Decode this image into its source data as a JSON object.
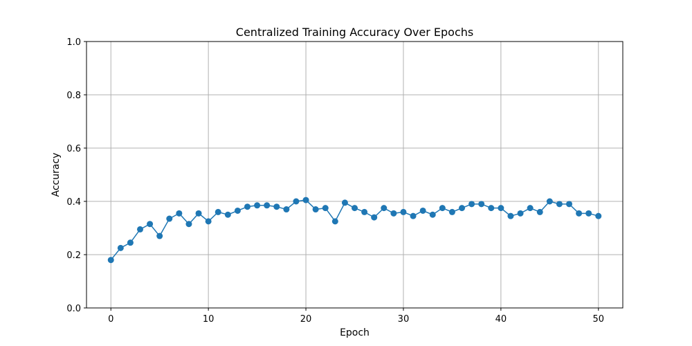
{
  "chart_data": {
    "type": "line",
    "title": "Centralized Training Accuracy Over Epochs",
    "xlabel": "Epoch",
    "ylabel": "Accuracy",
    "xlim": [
      -2.5,
      52.5
    ],
    "ylim": [
      0,
      1.0
    ],
    "xticks": [
      0,
      10,
      20,
      30,
      40,
      50
    ],
    "yticks": [
      0.0,
      0.2,
      0.4,
      0.6,
      0.8,
      1.0
    ],
    "xtick_labels": [
      "0",
      "10",
      "20",
      "30",
      "40",
      "50"
    ],
    "ytick_labels": [
      "0.0",
      "0.2",
      "0.4",
      "0.6",
      "0.8",
      "1.0"
    ],
    "grid": true,
    "marker": "circle",
    "color": "#1f77b4",
    "series": [
      {
        "x": [
          0,
          1,
          2,
          3,
          4,
          5,
          6,
          7,
          8,
          9,
          10,
          11,
          12,
          13,
          14,
          15,
          16,
          17,
          18,
          19,
          20,
          21,
          22,
          23,
          24,
          25,
          26,
          27,
          28,
          29,
          30,
          31,
          32,
          33,
          34,
          35,
          36,
          37,
          38,
          39,
          40,
          41,
          42,
          43,
          44,
          45,
          46,
          47,
          48,
          49,
          50
        ],
        "values": [
          0.18,
          0.225,
          0.245,
          0.295,
          0.315,
          0.27,
          0.335,
          0.355,
          0.315,
          0.355,
          0.325,
          0.36,
          0.35,
          0.365,
          0.38,
          0.385,
          0.385,
          0.38,
          0.37,
          0.4,
          0.405,
          0.37,
          0.375,
          0.325,
          0.395,
          0.375,
          0.36,
          0.34,
          0.375,
          0.355,
          0.36,
          0.345,
          0.365,
          0.35,
          0.375,
          0.36,
          0.375,
          0.39,
          0.39,
          0.375,
          0.375,
          0.345,
          0.355,
          0.375,
          0.36,
          0.4,
          0.39,
          0.39,
          0.355,
          0.355,
          0.345
        ]
      }
    ]
  }
}
